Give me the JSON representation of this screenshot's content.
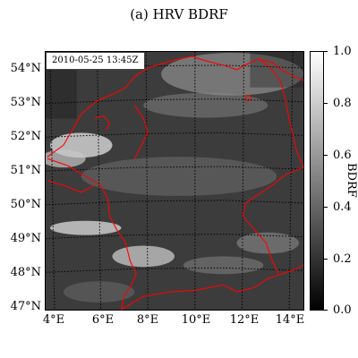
{
  "title": "(a) HRV BDRF",
  "timestamp": "2010-05-25 13:45Z",
  "lat_labels": [
    "54°N",
    "53°N",
    "52°N",
    "51°N",
    "50°N",
    "49°N",
    "48°N",
    "47°N"
  ],
  "lon_labels": [
    "4°E",
    "6°E",
    "8°E",
    "10°E",
    "12°E",
    "14°E"
  ],
  "colorbar": {
    "label": "BDRF",
    "ticks": [
      "1.0",
      "0.8",
      "0.6",
      "0.4",
      "0.2",
      "0.0"
    ],
    "range": [
      0.0,
      1.0
    ],
    "colormap": "gray"
  },
  "colors": {
    "border": "#ff0000",
    "grid": "#000000"
  }
}
